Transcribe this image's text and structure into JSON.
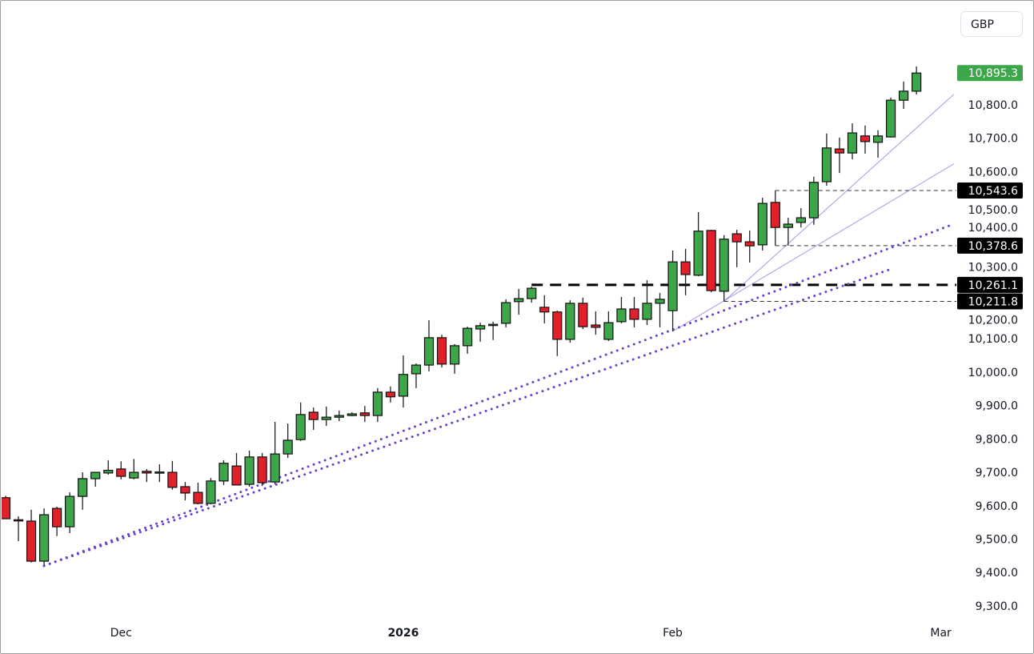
{
  "currency_button": "GBP",
  "chart_data": {
    "type": "candlestick",
    "title": "",
    "currency": "GBP",
    "ylim": [
      9250,
      10960
    ],
    "y_ticks": [
      9300,
      9400,
      9500,
      9600,
      9700,
      9800,
      9900,
      10000,
      10100,
      10200,
      10300,
      10400,
      10500,
      10600,
      10700,
      10800
    ],
    "y_tick_labels": [
      "9,300.0",
      "9,400.0",
      "9,500.0",
      "9,600.0",
      "9,700.0",
      "9,800.0",
      "9,900.0",
      "10,000.0",
      "10,100.0",
      "10,200.0",
      "10,300.0",
      "10,400.0",
      "10,500.0",
      "10,600.0",
      "10,700.0",
      "10,800.0"
    ],
    "x_labels": [
      {
        "label": "Dec",
        "index": 9
      },
      {
        "label": "2026",
        "index": 31
      },
      {
        "label": "Feb",
        "index": 52
      },
      {
        "label": "Mar",
        "index": 72.9
      }
    ],
    "candles_ohlc": [
      [
        9624,
        9630,
        9561,
        9561
      ],
      [
        9558,
        9568,
        9494,
        9556
      ],
      [
        9554,
        9588,
        9430,
        9434
      ],
      [
        9434,
        9592,
        9422,
        9573
      ],
      [
        9592,
        9597,
        9509,
        9537
      ],
      [
        9537,
        9640,
        9518,
        9628
      ],
      [
        9628,
        9700,
        9588,
        9681
      ],
      [
        9681,
        9700,
        9657,
        9700
      ],
      [
        9698,
        9736,
        9693,
        9706
      ],
      [
        9710,
        9733,
        9679,
        9688
      ],
      [
        9683,
        9740,
        9679,
        9700
      ],
      [
        9703,
        9710,
        9671,
        9698
      ],
      [
        9700,
        9724,
        9671,
        9701
      ],
      [
        9700,
        9734,
        9648,
        9655
      ],
      [
        9657,
        9671,
        9616,
        9638
      ],
      [
        9640,
        9669,
        9604,
        9607
      ],
      [
        9607,
        9683,
        9604,
        9674
      ],
      [
        9674,
        9736,
        9662,
        9727
      ],
      [
        9719,
        9758,
        9662,
        9662
      ],
      [
        9664,
        9765,
        9657,
        9746
      ],
      [
        9746,
        9758,
        9659,
        9669
      ],
      [
        9671,
        9851,
        9664,
        9755
      ],
      [
        9755,
        9846,
        9743,
        9796
      ],
      [
        9798,
        9909,
        9794,
        9873
      ],
      [
        9880,
        9894,
        9827,
        9858
      ],
      [
        9858,
        9897,
        9839,
        9865
      ],
      [
        9865,
        9885,
        9853,
        9870
      ],
      [
        9870,
        9880,
        9868,
        9875
      ],
      [
        9878,
        9899,
        9851,
        9870
      ],
      [
        9870,
        9952,
        9851,
        9940
      ],
      [
        9940,
        9957,
        9909,
        9926
      ],
      [
        9928,
        10050,
        9894,
        9993
      ],
      [
        9995,
        10026,
        9952,
        10021
      ],
      [
        10021,
        10155,
        10002,
        10103
      ],
      [
        10103,
        10112,
        10014,
        10024
      ],
      [
        10024,
        10084,
        9995,
        10079
      ],
      [
        10079,
        10136,
        10055,
        10131
      ],
      [
        10129,
        10148,
        10091,
        10139
      ],
      [
        10141,
        10151,
        10096,
        10143
      ],
      [
        10146,
        10218,
        10134,
        10208
      ],
      [
        10211,
        10249,
        10172,
        10220
      ],
      [
        10220,
        10256,
        10208,
        10251
      ],
      [
        10194,
        10230,
        10146,
        10180
      ],
      [
        10180,
        10184,
        10048,
        10098
      ],
      [
        10098,
        10215,
        10088,
        10206
      ],
      [
        10206,
        10223,
        10129,
        10136
      ],
      [
        10141,
        10182,
        10112,
        10134
      ],
      [
        10098,
        10182,
        10093,
        10148
      ],
      [
        10151,
        10225,
        10146,
        10189
      ],
      [
        10189,
        10225,
        10134,
        10158
      ],
      [
        10158,
        10275,
        10141,
        10206
      ],
      [
        10206,
        10237,
        10134,
        10218
      ],
      [
        10184,
        10364,
        10122,
        10330
      ],
      [
        10330,
        10369,
        10230,
        10292
      ],
      [
        10290,
        10479,
        10287,
        10422
      ],
      [
        10424,
        10426,
        10239,
        10244
      ],
      [
        10242,
        10410,
        10211.8,
        10398
      ],
      [
        10414,
        10426,
        10314,
        10390
      ],
      [
        10390,
        10424,
        10328,
        10378
      ],
      [
        10381,
        10522,
        10364,
        10505
      ],
      [
        10508,
        10543.6,
        10378.6,
        10433
      ],
      [
        10433,
        10462,
        10378.6,
        10443
      ],
      [
        10448,
        10491,
        10433,
        10462
      ],
      [
        10462,
        10585,
        10441,
        10568
      ],
      [
        10570,
        10714,
        10558,
        10671
      ],
      [
        10668,
        10702,
        10596,
        10656
      ],
      [
        10656,
        10745,
        10637,
        10716
      ],
      [
        10707,
        10738,
        10654,
        10690
      ],
      [
        10688,
        10724,
        10642,
        10707
      ],
      [
        10704,
        10822,
        10702,
        10814
      ],
      [
        10814,
        10870,
        10788,
        10841
      ],
      [
        10841,
        10915,
        10831,
        10895.3
      ]
    ],
    "price_tags": [
      {
        "label": "10,895.3",
        "value": 10895.3,
        "kind": "last"
      },
      {
        "label": "10,543.6",
        "value": 10543.6,
        "kind": "level"
      },
      {
        "label": "10,378.6",
        "value": 10378.6,
        "kind": "level"
      },
      {
        "label": "10,261.1",
        "value": 10261.1,
        "kind": "level"
      },
      {
        "label": "10,211.8",
        "value": 10211.8,
        "kind": "level"
      }
    ],
    "horizontal_lines": [
      {
        "value": 10261.1,
        "from_index": 41,
        "style": "thick-dashed"
      },
      {
        "value": 10543.6,
        "from_index": 60,
        "style": "thin-dashed"
      },
      {
        "value": 10378.6,
        "from_index": 60,
        "style": "thin-dashed"
      },
      {
        "value": 10211.8,
        "from_index": 56,
        "style": "thin-dashed"
      }
    ],
    "trend_lines": [
      {
        "from": [
          3,
          9420
        ],
        "to": [
          73.9,
          10443
        ],
        "style": "dotted"
      },
      {
        "from": [
          3,
          9420
        ],
        "to": [
          68.9,
          10307
        ],
        "style": "dotted"
      },
      {
        "from": [
          52,
          10122
        ],
        "to": [
          73.9,
          10623
        ],
        "style": "thin"
      },
      {
        "from": [
          56,
          10211.8
        ],
        "to": [
          73.9,
          10831
        ],
        "style": "thin"
      }
    ],
    "colors": {
      "up": "#3da54a",
      "down": "#e0212b",
      "last_tag": "#3da54a",
      "trend": "#6a3fd0",
      "level_tag": "#000000"
    }
  }
}
